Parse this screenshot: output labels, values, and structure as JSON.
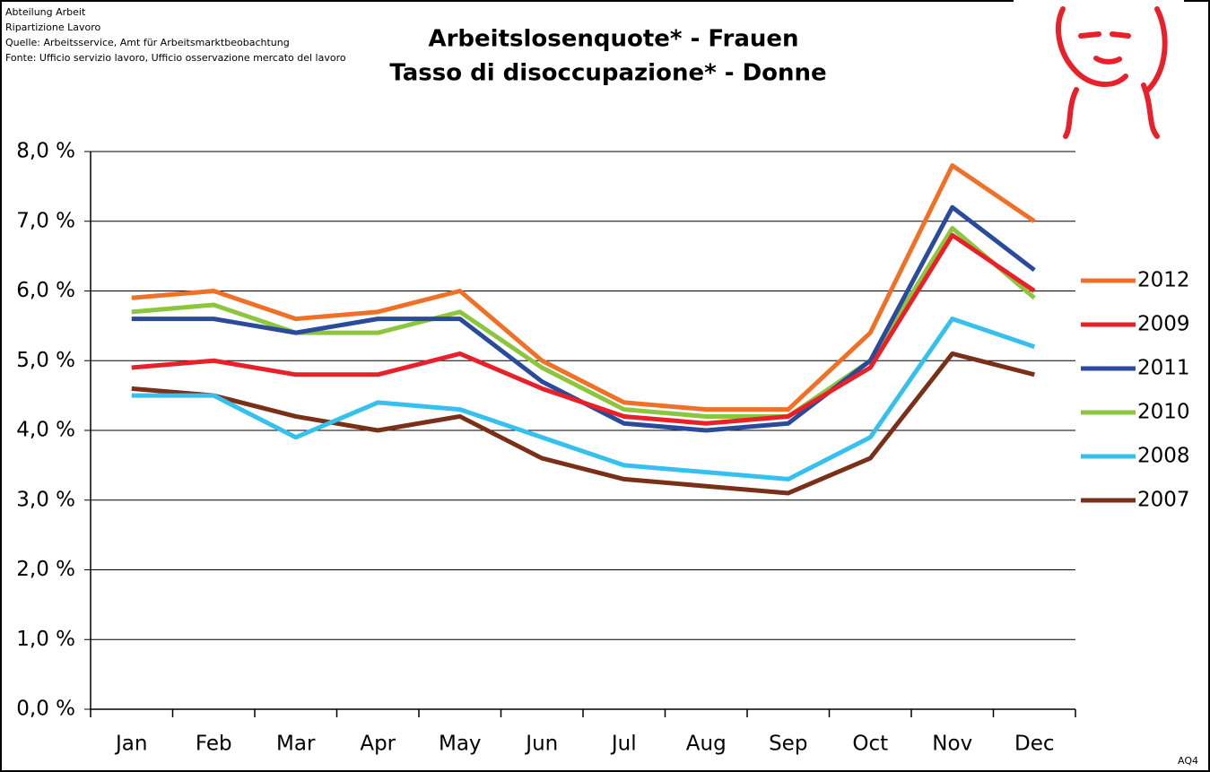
{
  "header": {
    "lines": [
      "Abteilung Arbeit",
      "Ripartizione Lavoro",
      "Quelle: Arbeitsservice, Amt für Arbeitsmarktbeobachtung",
      "Fonte: Ufficio servizio lavoro, Ufficio osservazione mercato del lavoro"
    ]
  },
  "footer": "AQ4",
  "chart_data": {
    "type": "line",
    "title": "Arbeitslosenquote* - Frauen",
    "subtitle": "Tasso di disoccupazione* - Donne",
    "categories": [
      "Jan",
      "Feb",
      "Mar",
      "Apr",
      "May",
      "Jun",
      "Jul",
      "Aug",
      "Sep",
      "Oct",
      "Nov",
      "Dec"
    ],
    "ylim": [
      0,
      8
    ],
    "yticks": [
      {
        "value": 0,
        "label": "0,0 %"
      },
      {
        "value": 1,
        "label": "1,0 %"
      },
      {
        "value": 2,
        "label": "2,0 %"
      },
      {
        "value": 3,
        "label": "3,0 %"
      },
      {
        "value": 4,
        "label": "4,0 %"
      },
      {
        "value": 5,
        "label": "5,0 %"
      },
      {
        "value": 6,
        "label": "6,0 %"
      },
      {
        "value": 7,
        "label": "7,0 %"
      },
      {
        "value": 8,
        "label": "8,0 %"
      }
    ],
    "grid": true,
    "legend": "right",
    "series": [
      {
        "name": "2012",
        "color": "#f07028",
        "values": [
          5.9,
          6.0,
          5.6,
          5.7,
          6.0,
          5.0,
          4.4,
          4.3,
          4.3,
          5.4,
          7.8,
          7.0
        ]
      },
      {
        "name": "2009",
        "color": "#e8202a",
        "values": [
          4.9,
          5.0,
          4.8,
          4.8,
          5.1,
          4.6,
          4.2,
          4.1,
          4.2,
          4.9,
          6.8,
          6.0
        ]
      },
      {
        "name": "2011",
        "color": "#2a4a9c",
        "values": [
          5.6,
          5.6,
          5.4,
          5.6,
          5.6,
          4.7,
          4.1,
          4.0,
          4.1,
          5.0,
          7.2,
          6.3
        ]
      },
      {
        "name": "2010",
        "color": "#8cc63e",
        "values": [
          5.7,
          5.8,
          5.4,
          5.4,
          5.7,
          4.9,
          4.3,
          4.2,
          4.2,
          5.0,
          6.9,
          5.9
        ]
      },
      {
        "name": "2008",
        "color": "#36c0ee",
        "values": [
          4.5,
          4.5,
          3.9,
          4.4,
          4.3,
          3.9,
          3.5,
          3.4,
          3.3,
          3.9,
          5.6,
          5.2
        ]
      },
      {
        "name": "2007",
        "color": "#7a3018",
        "values": [
          4.6,
          4.5,
          4.2,
          4.0,
          4.2,
          3.6,
          3.3,
          3.2,
          3.1,
          3.6,
          5.1,
          4.8
        ]
      }
    ]
  }
}
